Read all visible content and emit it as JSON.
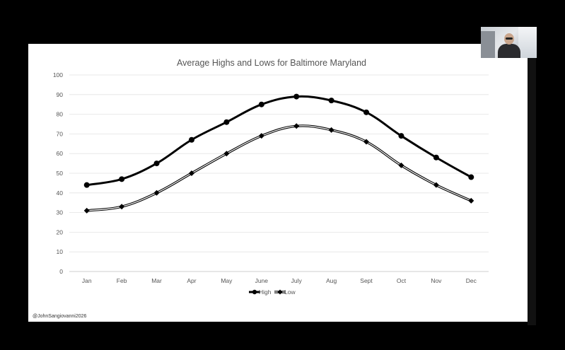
{
  "credit": "@JohnSangiovanni2026",
  "chart_data": {
    "type": "line",
    "title": "Average Highs and Lows for Baltimore Maryland",
    "categories": [
      "Jan",
      "Feb",
      "Mar",
      "Apr",
      "May",
      "June",
      "July",
      "Aug",
      "Sept",
      "Oct",
      "Nov",
      "Dec"
    ],
    "series": [
      {
        "name": "High",
        "values": [
          44,
          47,
          55,
          67,
          76,
          85,
          89,
          87,
          81,
          69,
          58,
          48
        ],
        "color": "#000000",
        "marker": "circle"
      },
      {
        "name": "Low",
        "values": [
          31,
          33,
          40,
          50,
          60,
          69,
          74,
          72,
          66,
          54,
          44,
          36
        ],
        "color": "#000000",
        "marker": "diamond",
        "style": "double-line"
      }
    ],
    "ylim": [
      0,
      100
    ],
    "yticks": [
      0,
      10,
      20,
      30,
      40,
      50,
      60,
      70,
      80,
      90,
      100
    ],
    "grid": true,
    "legend": "bottom"
  }
}
